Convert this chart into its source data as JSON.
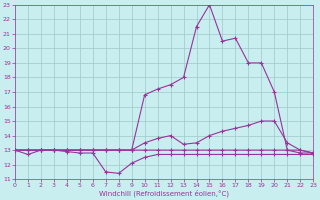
{
  "xlabel": "Windchill (Refroidissement éolien,°C)",
  "xlim": [
    0,
    23
  ],
  "ylim": [
    11,
    23
  ],
  "xticks": [
    0,
    1,
    2,
    3,
    4,
    5,
    6,
    7,
    8,
    9,
    10,
    11,
    12,
    13,
    14,
    15,
    16,
    17,
    18,
    19,
    20,
    21,
    22,
    23
  ],
  "yticks": [
    11,
    12,
    13,
    14,
    15,
    16,
    17,
    18,
    19,
    20,
    21,
    22,
    23
  ],
  "background_color": "#c8eef0",
  "grid_color": "#a0c8c8",
  "line_color": "#993399",
  "line1_y": [
    13,
    13,
    13,
    13,
    13,
    13,
    13,
    13,
    13,
    13,
    13,
    13,
    13,
    13,
    13,
    13,
    13,
    13,
    13,
    13,
    13,
    13,
    13,
    12.8
  ],
  "line2_y": [
    13,
    12.7,
    13,
    13,
    12.9,
    12.8,
    12.8,
    11.5,
    11.4,
    12.1,
    12.5,
    12.7,
    12.7,
    12.7,
    12.7,
    12.7,
    12.7,
    12.7,
    12.7,
    12.7,
    12.7,
    12.7,
    12.7,
    12.7
  ],
  "line3_y": [
    13,
    13,
    13,
    13,
    13,
    13,
    13,
    13,
    13,
    13,
    13.5,
    13.8,
    14.0,
    13.4,
    13.5,
    14.0,
    14.3,
    14.5,
    14.7,
    15.0,
    15.0,
    13.5,
    13.0,
    12.8
  ],
  "line4_y": [
    13,
    13,
    13,
    13,
    13,
    13,
    13,
    13,
    13,
    13,
    16.8,
    17.2,
    17.5,
    18.0,
    21.5,
    23.0,
    20.5,
    20.7,
    19.0,
    19.0,
    17.0,
    13.0,
    12.8,
    12.8
  ]
}
